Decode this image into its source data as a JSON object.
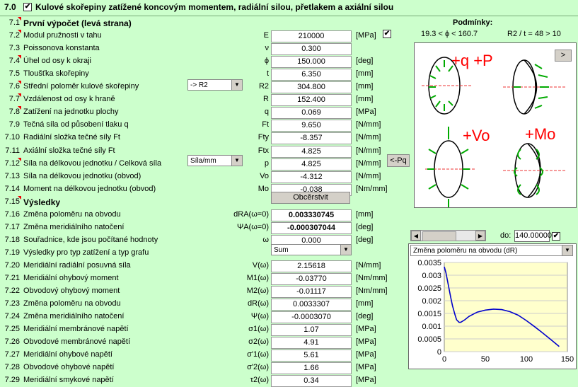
{
  "header": {
    "number": "7.0",
    "checkbox": "✔",
    "title": "Kulové skořepiny zatížené koncovým momentem, radiální silou, přetlakem a axiální silou"
  },
  "conditions": {
    "title": "Podmínky:",
    "c1": "19.3  <  ϕ  <  160.7",
    "c2": "R2 / t = 48 > 10"
  },
  "rows": [
    {
      "n": "7.1",
      "label": "První výpočet (levá strana)",
      "sym": "",
      "val": "",
      "unit": "",
      "section": true
    },
    {
      "n": "7.2",
      "label": "Modul pružnosti v tahu",
      "sym": "E",
      "val": "210000",
      "unit": "[MPa]"
    },
    {
      "n": "7.3",
      "label": "Poissonova konstanta",
      "sym": "ν",
      "val": "0.300",
      "unit": ""
    },
    {
      "n": "7.4",
      "label": "Úhel od osy k okraji",
      "sym": "ϕ",
      "val": "150.000",
      "unit": "[deg]"
    },
    {
      "n": "7.5",
      "label": "Tloušťka skořepiny",
      "sym": "t",
      "val": "6.350",
      "unit": "[mm]"
    },
    {
      "n": "7.6",
      "label": "Střední poloměr kulové skořepiny",
      "sym": "R2",
      "val": "304.800",
      "unit": "[mm]"
    },
    {
      "n": "7.7",
      "label": "Vzdálenost od osy k hraně",
      "sym": "R",
      "val": "152.400",
      "unit": "[mm]"
    },
    {
      "n": "7.8",
      "label": "Zatížení na jednotku plochy",
      "sym": "q",
      "val": "0.069",
      "unit": "[MPa]"
    },
    {
      "n": "7.9",
      "label": "Tečná síla od působení tlaku q",
      "sym": "Ft",
      "val": "9.650",
      "unit": "[N/mm]"
    },
    {
      "n": "7.10",
      "label": "Radiální složka tečné síly Ft",
      "sym": "Fty",
      "val": "-8.357",
      "unit": "[N/mm]"
    },
    {
      "n": "7.11",
      "label": "Axiální složka tečné síly Ft",
      "sym": "Ftx",
      "val": "4.825",
      "unit": "[N/mm]"
    },
    {
      "n": "7.12",
      "label": "Síla na délkovou jednotku / Celková síla",
      "sym": "p",
      "val": "4.825",
      "unit": "[N/mm]"
    },
    {
      "n": "7.13",
      "label": "Síla na délkovou jednotku (obvod)",
      "sym": "Vo",
      "val": "-4.312",
      "unit": "[N/mm]"
    },
    {
      "n": "7.14",
      "label": "Moment na délkovou jednotku (obvod)",
      "sym": "Mo",
      "val": "-0.038",
      "unit": "[Nm/mm]"
    },
    {
      "n": "7.15",
      "label": "Výsledky",
      "sym": "",
      "val": "",
      "unit": "",
      "section": true
    },
    {
      "n": "7.16",
      "label": "Změna poloměru na obvodu",
      "sym": "dRA(ω=0)",
      "val": "0.003330745",
      "unit": "[mm]",
      "bold": true
    },
    {
      "n": "7.17",
      "label": "Změna meridiálního natočení",
      "sym": "ΨA(ω=0)",
      "val": "-0.000307044",
      "unit": "[deg]",
      "bold": true
    },
    {
      "n": "7.18",
      "label": "Souřadnice, kde jsou počítané hodnoty",
      "sym": "ω",
      "val": "0.000",
      "unit": "[deg]"
    },
    {
      "n": "7.19",
      "label": "Výsledky pro typ zatížení a typ grafu",
      "sym": "",
      "val": "",
      "unit": ""
    },
    {
      "n": "7.20",
      "label": "Meridiální radiální posuvná síla",
      "sym": "V(ω)",
      "val": "2.15618",
      "unit": "[N/mm]"
    },
    {
      "n": "7.21",
      "label": "Meridiální ohybový moment",
      "sym": "M1(ω)",
      "val": "-0.03770",
      "unit": "[Nm/mm]"
    },
    {
      "n": "7.22",
      "label": "Obvodový ohybový moment",
      "sym": "M2(ω)",
      "val": "-0.01117",
      "unit": "[Nm/mm]"
    },
    {
      "n": "7.23",
      "label": "Změna poloměru na obvodu",
      "sym": "dR(ω)",
      "val": "0.0033307",
      "unit": "[mm]"
    },
    {
      "n": "7.24",
      "label": "Změna meridiálního natočení",
      "sym": "Ψ(ω)",
      "val": "-0.0003070",
      "unit": "[deg]"
    },
    {
      "n": "7.25",
      "label": "Meridiální membránové napětí",
      "sym": "σ1(ω)",
      "val": "1.07",
      "unit": "[MPa]"
    },
    {
      "n": "7.26",
      "label": "Obvodové membránové napětí",
      "sym": "σ2(ω)",
      "val": "4.91",
      "unit": "[MPa]"
    },
    {
      "n": "7.27",
      "label": "Meridiální ohybové napětí",
      "sym": "σ'1(ω)",
      "val": "5.61",
      "unit": "[MPa]"
    },
    {
      "n": "7.28",
      "label": "Obvodové ohybové napětí",
      "sym": "σ'2(ω)",
      "val": "1.66",
      "unit": "[MPa]"
    },
    {
      "n": "7.29",
      "label": "Meridiální smykové napětí",
      "sym": "τ2(ω)",
      "val": "0.34",
      "unit": "[MPa]"
    }
  ],
  "controls": {
    "r2_combo": "-> R2",
    "sila_combo": "Síla/mm",
    "refresh": "Obcěrstvit",
    "pq_button": "<-Pq",
    "results_combo": "Sum",
    "next_button": ">",
    "do_label": "do:",
    "do_value": "140.00000",
    "chart_combo": "Změna poloměru na obvodu (dR)",
    "cb_mark": "✔"
  },
  "diagram_labels": {
    "qp": "+q +P",
    "vo": "+Vo",
    "mo": "+Mo"
  },
  "colors": {
    "bg": "#ccffcc",
    "plot_bg": "#ffffcc",
    "series": "#0000cc",
    "arrows": "#00aa00",
    "labels": "#ff0000"
  },
  "chart_data": {
    "type": "line",
    "x": [
      0,
      2,
      5,
      8,
      10,
      13,
      15,
      18,
      20,
      25,
      30,
      40,
      50,
      60,
      70,
      80,
      90,
      100,
      110,
      120,
      130,
      140
    ],
    "y": [
      0.00333,
      0.0031,
      0.0026,
      0.0021,
      0.0018,
      0.00145,
      0.00125,
      0.00115,
      0.00115,
      0.00125,
      0.00138,
      0.00155,
      0.00163,
      0.00167,
      0.00165,
      0.00157,
      0.00143,
      0.00122,
      0.00098,
      0.00073,
      0.00047,
      0.0002
    ],
    "xticks": [
      "0",
      "50",
      "100",
      "150"
    ],
    "yticks": [
      "0",
      "0.0005",
      "0.001",
      "0.0015",
      "0.002",
      "0.0025",
      "0.003",
      "0.0035"
    ],
    "xlim": [
      0,
      150
    ],
    "ylim": [
      0,
      0.0035
    ]
  }
}
